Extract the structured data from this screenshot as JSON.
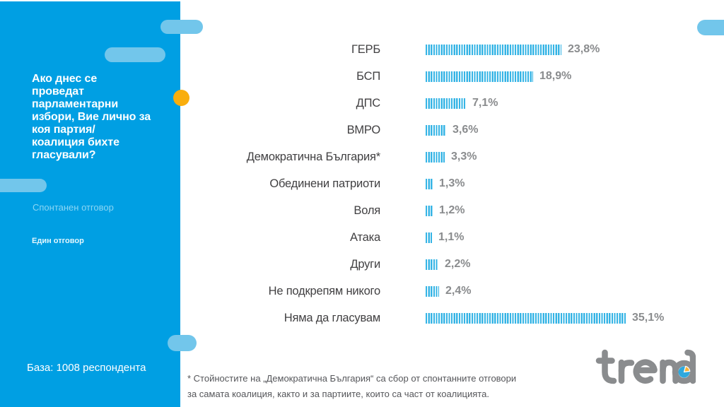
{
  "colors": {
    "sidebar_bg": "#009FE3",
    "deco_pill": "#72C6EB",
    "accent_dot": "#F9AE0D",
    "bar": "#35B4E5",
    "value_text": "#8A8C8E",
    "label_text": "#414042",
    "footnote_text": "#55565A",
    "logo_gray": "#8A8C8E",
    "pie_blue": "#2FA8DC",
    "pie_yellow": "#F9B233",
    "subtitle_text": "#8BD6F4",
    "note_text": "#E3F6FD"
  },
  "sidebar": {
    "question_lines": [
      "Ако днес се",
      "проведат",
      "парламентарни",
      "избори, Вие лично за",
      "коя партия/",
      "коалиция бихте",
      "гласували?"
    ],
    "subtitle": "Спонтанен отговор",
    "note": "Един отговор",
    "base": "База: 1008 респондента"
  },
  "chart_data": {
    "type": "bar",
    "orientation": "horizontal",
    "categories": [
      "ГЕРБ",
      "БСП",
      "ДПС",
      "ВМРО",
      "Демократична България*",
      "Обединени патриоти",
      "Воля",
      "Атака",
      "Други",
      "Не подкрепям никого",
      "Няма да гласувам"
    ],
    "values": [
      23.8,
      18.9,
      7.1,
      3.6,
      3.3,
      1.3,
      1.2,
      1.1,
      2.2,
      2.4,
      35.1
    ],
    "value_labels": [
      "23,8%",
      "18,9%",
      "7,1%",
      "3,6%",
      "3,3%",
      "1,3%",
      "1,2%",
      "1,1%",
      "2,2%",
      "2,4%",
      "35,1%"
    ],
    "title": "",
    "xlabel": "",
    "ylabel": "",
    "xlim": [
      0,
      40
    ],
    "grid": false,
    "legend": false,
    "bar_style": "striped"
  },
  "footnote": {
    "lines": [
      "* Стойностите на „Демократична България“ са сбор от спонтанните отговори",
      "за самата коалиция, както и за партиите, които са част от коалицията."
    ]
  },
  "logo": {
    "text": "trend"
  }
}
